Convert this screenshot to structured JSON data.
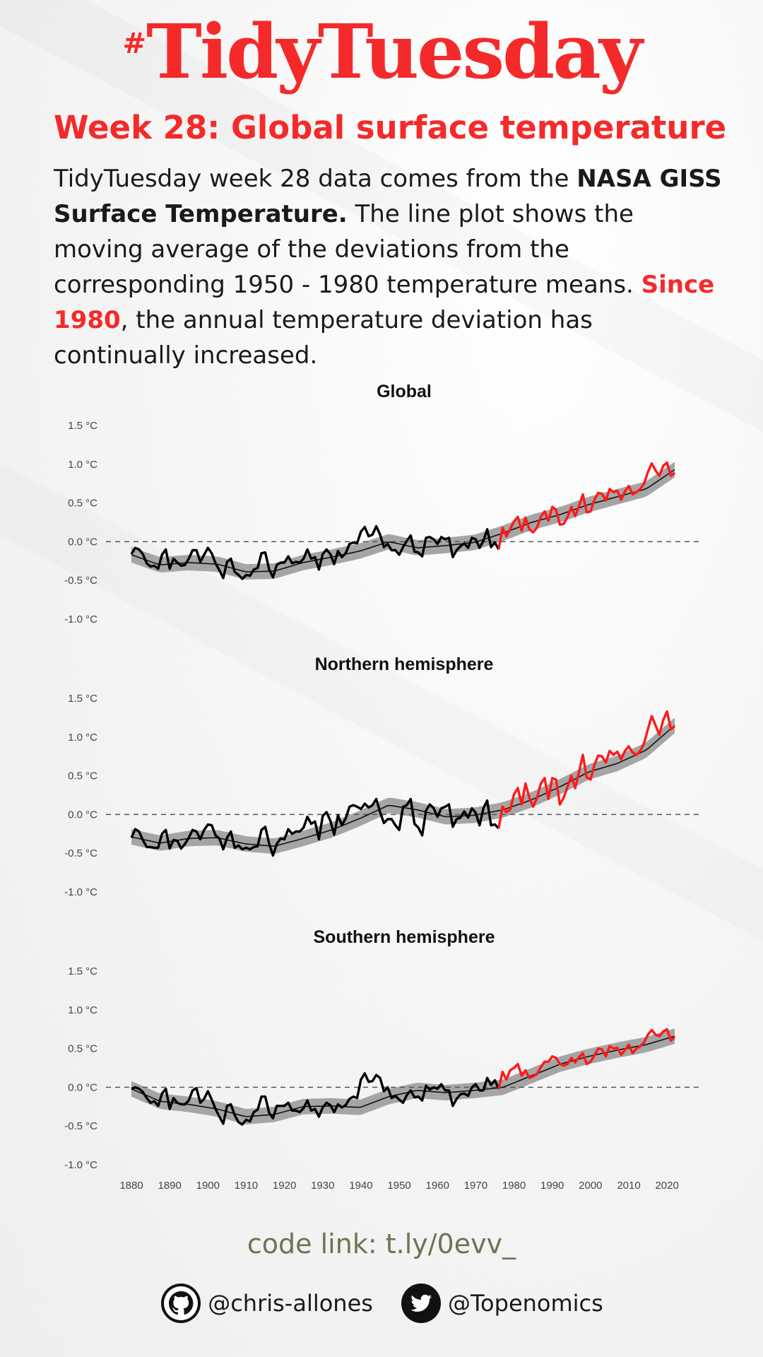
{
  "header": {
    "hash": "#",
    "brand": "TidyTuesday",
    "subtitle": "Week 28: Global surface temperature"
  },
  "description": {
    "part1": "TidyTuesday week 28 data comes from the ",
    "bold": "NASA GISS Surface Temperature.",
    "part2": " The line plot shows the moving average of the deviations from the corresponding 1950 -  1980 temperature means. ",
    "highlight": "Since 1980",
    "part3": ", the annual temperature deviation has continually increased."
  },
  "footer": {
    "code_link": "code link: t.ly/0evv_",
    "github_handle": "@chris-allones",
    "twitter_handle": "@Topenomics"
  },
  "colors": {
    "accent": "#f42a2a",
    "recent_line": "#ff1a1a",
    "line": "#000000",
    "ribbon": "#a0a0a0",
    "code_link": "#6b7552"
  },
  "icons": {
    "github": "github-icon",
    "twitter": "twitter-icon"
  },
  "chart_data": [
    {
      "type": "line",
      "title": "Global",
      "xlabel": "",
      "ylabel": "",
      "ylim": [
        -1.0,
        1.5
      ],
      "xlim": [
        1880,
        2022
      ],
      "y_ticks": [
        "1.5 °C",
        "1.0 °C",
        "0.5 °C",
        "0.0 °C",
        "-0.5 °C",
        "-1.0 °C"
      ],
      "y_tick_values": [
        1.5,
        1.0,
        0.5,
        0.0,
        -0.5,
        -1.0
      ],
      "reference_line": 0.0,
      "highlight_from": 1976,
      "x_start": 1880,
      "values": [
        -0.16,
        -0.08,
        -0.1,
        -0.16,
        -0.28,
        -0.32,
        -0.31,
        -0.35,
        -0.17,
        -0.1,
        -0.35,
        -0.22,
        -0.27,
        -0.31,
        -0.3,
        -0.22,
        -0.11,
        -0.11,
        -0.26,
        -0.17,
        -0.08,
        -0.15,
        -0.28,
        -0.37,
        -0.47,
        -0.26,
        -0.22,
        -0.39,
        -0.43,
        -0.48,
        -0.43,
        -0.44,
        -0.36,
        -0.34,
        -0.15,
        -0.14,
        -0.36,
        -0.46,
        -0.3,
        -0.27,
        -0.27,
        -0.19,
        -0.28,
        -0.26,
        -0.27,
        -0.22,
        -0.1,
        -0.22,
        -0.2,
        -0.36,
        -0.16,
        -0.1,
        -0.16,
        -0.29,
        -0.12,
        -0.2,
        -0.15,
        -0.03,
        -0.01,
        -0.02,
        0.13,
        0.19,
        0.07,
        0.09,
        0.2,
        0.09,
        -0.07,
        -0.03,
        -0.11,
        -0.11,
        -0.17,
        -0.07,
        0.01,
        0.08,
        -0.13,
        -0.14,
        -0.19,
        0.05,
        0.06,
        0.03,
        -0.03,
        0.06,
        0.03,
        0.05,
        -0.2,
        -0.11,
        -0.06,
        -0.02,
        -0.08,
        0.05,
        0.03,
        -0.08,
        0.01,
        0.16,
        -0.07,
        -0.01,
        -0.1,
        0.18,
        0.07,
        0.16,
        0.26,
        0.32,
        0.14,
        0.31,
        0.16,
        0.12,
        0.18,
        0.32,
        0.39,
        0.27,
        0.45,
        0.41,
        0.22,
        0.23,
        0.32,
        0.45,
        0.33,
        0.46,
        0.61,
        0.38,
        0.39,
        0.54,
        0.63,
        0.62,
        0.53,
        0.68,
        0.64,
        0.66,
        0.54,
        0.65,
        0.72,
        0.61,
        0.64,
        0.68,
        0.75,
        0.9,
        1.01,
        0.92,
        0.85,
        0.98,
        1.02,
        0.85,
        0.89
      ],
      "smooth": [
        -0.17,
        -0.3,
        -0.27,
        -0.29,
        -0.39,
        -0.38,
        -0.27,
        -0.2,
        -0.12,
        0.0,
        -0.08,
        -0.05,
        -0.01,
        0.11,
        0.25,
        0.35,
        0.48,
        0.58,
        0.68,
        0.93
      ]
    },
    {
      "type": "line",
      "title": "Northern hemisphere",
      "xlabel": "",
      "ylabel": "",
      "ylim": [
        -1.0,
        1.5
      ],
      "xlim": [
        1880,
        2022
      ],
      "y_ticks": [
        "1.5 °C",
        "1.0 °C",
        "0.5 °C",
        "0.0 °C",
        "-0.5 °C",
        "-1.0 °C"
      ],
      "y_tick_values": [
        1.5,
        1.0,
        0.5,
        0.0,
        -0.5,
        -1.0
      ],
      "reference_line": 0.0,
      "highlight_from": 1976,
      "x_start": 1880,
      "values": [
        -0.3,
        -0.19,
        -0.22,
        -0.33,
        -0.42,
        -0.42,
        -0.43,
        -0.43,
        -0.25,
        -0.2,
        -0.44,
        -0.33,
        -0.34,
        -0.44,
        -0.38,
        -0.3,
        -0.2,
        -0.22,
        -0.32,
        -0.2,
        -0.13,
        -0.14,
        -0.27,
        -0.31,
        -0.45,
        -0.3,
        -0.22,
        -0.43,
        -0.4,
        -0.45,
        -0.43,
        -0.45,
        -0.42,
        -0.41,
        -0.2,
        -0.16,
        -0.38,
        -0.53,
        -0.38,
        -0.31,
        -0.32,
        -0.19,
        -0.25,
        -0.22,
        -0.22,
        -0.17,
        -0.03,
        -0.12,
        -0.09,
        -0.32,
        -0.02,
        0.03,
        -0.08,
        -0.26,
        -0.01,
        -0.14,
        -0.05,
        0.1,
        0.12,
        0.1,
        0.07,
        0.14,
        0.09,
        0.12,
        0.2,
        0.03,
        -0.11,
        -0.06,
        -0.06,
        -0.14,
        -0.2,
        0.1,
        0.12,
        0.2,
        -0.12,
        -0.17,
        -0.27,
        0.05,
        0.13,
        0.08,
        -0.03,
        0.08,
        0.1,
        0.13,
        -0.16,
        -0.06,
        -0.04,
        0.04,
        -0.04,
        0.08,
        0.02,
        -0.14,
        0.08,
        0.18,
        -0.14,
        -0.13,
        -0.18,
        0.1,
        0.03,
        0.06,
        0.26,
        0.34,
        0.13,
        0.4,
        0.22,
        0.1,
        0.21,
        0.4,
        0.47,
        0.2,
        0.47,
        0.45,
        0.13,
        0.22,
        0.36,
        0.5,
        0.34,
        0.55,
        0.77,
        0.48,
        0.45,
        0.64,
        0.76,
        0.75,
        0.67,
        0.82,
        0.77,
        0.81,
        0.71,
        0.82,
        0.88,
        0.8,
        0.77,
        0.82,
        0.92,
        1.1,
        1.27,
        1.15,
        1.03,
        1.22,
        1.33,
        1.1,
        1.14
      ],
      "smooth": [
        -0.29,
        -0.37,
        -0.31,
        -0.3,
        -0.38,
        -0.41,
        -0.31,
        -0.2,
        -0.05,
        0.12,
        0.06,
        -0.03,
        -0.01,
        0.06,
        0.19,
        0.36,
        0.55,
        0.66,
        0.83,
        1.15
      ]
    },
    {
      "type": "line",
      "title": "Southern hemisphere",
      "xlabel": "",
      "ylabel": "",
      "ylim": [
        -1.0,
        1.5
      ],
      "xlim": [
        1880,
        2022
      ],
      "y_ticks": [
        "1.5 °C",
        "1.0 °C",
        "0.5 °C",
        "0.0 °C",
        "-0.5 °C",
        "-1.0 °C"
      ],
      "y_tick_values": [
        1.5,
        1.0,
        0.5,
        0.0,
        -0.5,
        -1.0
      ],
      "x_ticks": [
        "1880",
        "1890",
        "1900",
        "1910",
        "1920",
        "1930",
        "1940",
        "1950",
        "1960",
        "1970",
        "1980",
        "1990",
        "2000",
        "2010",
        "2020"
      ],
      "x_tick_values": [
        1880,
        1890,
        1900,
        1910,
        1920,
        1930,
        1940,
        1950,
        1960,
        1970,
        1980,
        1990,
        2000,
        2010,
        2020
      ],
      "reference_line": 0.0,
      "highlight_from": 1976,
      "x_start": 1880,
      "values": [
        -0.02,
        0.0,
        -0.02,
        -0.06,
        -0.14,
        -0.2,
        -0.18,
        -0.24,
        -0.08,
        -0.02,
        -0.28,
        -0.14,
        -0.2,
        -0.22,
        -0.22,
        -0.17,
        -0.04,
        -0.01,
        -0.2,
        -0.15,
        -0.05,
        -0.16,
        -0.28,
        -0.38,
        -0.47,
        -0.24,
        -0.22,
        -0.36,
        -0.45,
        -0.48,
        -0.42,
        -0.44,
        -0.32,
        -0.29,
        -0.12,
        -0.12,
        -0.33,
        -0.4,
        -0.24,
        -0.24,
        -0.24,
        -0.2,
        -0.3,
        -0.3,
        -0.32,
        -0.27,
        -0.17,
        -0.3,
        -0.28,
        -0.38,
        -0.26,
        -0.2,
        -0.23,
        -0.32,
        -0.22,
        -0.26,
        -0.23,
        -0.15,
        -0.12,
        -0.14,
        0.1,
        0.18,
        0.07,
        0.08,
        0.16,
        0.12,
        -0.05,
        0.0,
        -0.14,
        -0.11,
        -0.16,
        -0.2,
        -0.1,
        -0.04,
        -0.13,
        -0.12,
        -0.17,
        0.02,
        -0.03,
        0.0,
        -0.02,
        0.04,
        -0.04,
        -0.04,
        -0.24,
        -0.15,
        -0.09,
        -0.08,
        -0.11,
        0.0,
        0.04,
        -0.04,
        -0.04,
        0.12,
        0.03,
        0.09,
        -0.02,
        0.2,
        0.1,
        0.22,
        0.25,
        0.3,
        0.15,
        0.22,
        0.12,
        0.14,
        0.17,
        0.26,
        0.33,
        0.33,
        0.4,
        0.38,
        0.3,
        0.28,
        0.3,
        0.38,
        0.32,
        0.39,
        0.44,
        0.3,
        0.33,
        0.41,
        0.5,
        0.49,
        0.4,
        0.53,
        0.5,
        0.51,
        0.42,
        0.48,
        0.55,
        0.44,
        0.5,
        0.53,
        0.58,
        0.68,
        0.74,
        0.68,
        0.66,
        0.72,
        0.75,
        0.6,
        0.65
      ],
      "smooth": [
        -0.02,
        -0.18,
        -0.22,
        -0.28,
        -0.38,
        -0.35,
        -0.25,
        -0.24,
        -0.26,
        -0.12,
        -0.04,
        -0.07,
        -0.04,
        0.0,
        0.15,
        0.3,
        0.4,
        0.48,
        0.55,
        0.66
      ]
    }
  ]
}
